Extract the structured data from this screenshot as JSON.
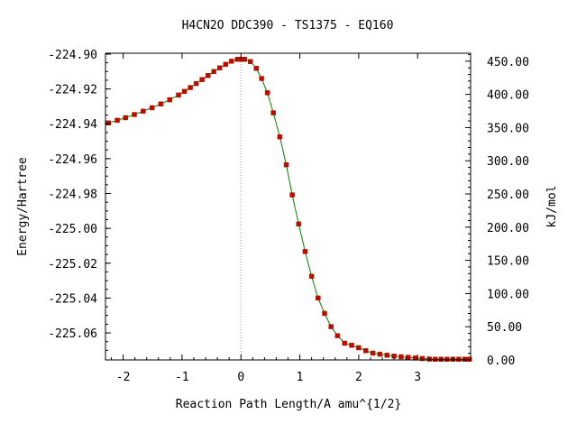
{
  "chart_data": {
    "type": "line",
    "title": "H4CN2O   DDC390 - TS1375 - EQ160",
    "xlabel": "Reaction Path Length/A amu^{1/2}",
    "ylabel": "Energy/Hartree",
    "y2label": "kJ/mol",
    "xlim": [
      -2.3,
      3.9
    ],
    "ylim": [
      -225.0755,
      -224.8995
    ],
    "y2lim": [
      0.0,
      462.0
    ],
    "x_ticks": [
      {
        "value": -2,
        "label": "-2"
      },
      {
        "value": -1,
        "label": "-1"
      },
      {
        "value": 0,
        "label": "0"
      },
      {
        "value": 1,
        "label": "1"
      },
      {
        "value": 2,
        "label": "2"
      },
      {
        "value": 3,
        "label": "3"
      }
    ],
    "y_ticks": [
      {
        "value": -224.9,
        "label": "-224.90"
      },
      {
        "value": -224.92,
        "label": "-224.92"
      },
      {
        "value": -224.94,
        "label": "-224.94"
      },
      {
        "value": -224.96,
        "label": "-224.96"
      },
      {
        "value": -224.98,
        "label": "-224.98"
      },
      {
        "value": -225.0,
        "label": "-225.00"
      },
      {
        "value": -225.02,
        "label": "-225.02"
      },
      {
        "value": -225.04,
        "label": "-225.04"
      },
      {
        "value": -225.06,
        "label": "-225.06"
      }
    ],
    "y2_ticks": [
      {
        "value": 450,
        "label": "450.00"
      },
      {
        "value": 400,
        "label": "400.00"
      },
      {
        "value": 350,
        "label": "350.00"
      },
      {
        "value": 300,
        "label": "300.00"
      },
      {
        "value": 250,
        "label": "250.00"
      },
      {
        "value": 200,
        "label": "200.00"
      },
      {
        "value": 150,
        "label": "150.00"
      },
      {
        "value": 100,
        "label": "100.00"
      },
      {
        "value": 50,
        "label": "50.00"
      },
      {
        "value": 0,
        "label": "0.00"
      }
    ],
    "ts_marker_x": 0,
    "grid": false,
    "series": [
      {
        "x": [
          -2.25,
          -2.1,
          -1.96,
          -1.81,
          -1.66,
          -1.51,
          -1.36,
          -1.21,
          -1.06,
          -0.96,
          -0.86,
          -0.76,
          -0.66,
          -0.56,
          -0.46,
          -0.36,
          -0.26,
          -0.16,
          -0.06,
          0.0,
          0.06,
          0.16,
          0.26,
          0.35,
          0.45,
          0.55,
          0.66,
          0.77,
          0.87,
          0.98,
          1.09,
          1.2,
          1.31,
          1.42,
          1.53,
          1.64,
          1.76,
          1.88,
          2.0,
          2.12,
          2.24,
          2.36,
          2.48,
          2.6,
          2.72,
          2.84,
          2.96,
          3.08,
          3.2,
          3.3,
          3.4,
          3.5,
          3.6,
          3.7,
          3.8,
          3.88
        ],
        "y": [
          -224.9395,
          -224.938,
          -224.9365,
          -224.9347,
          -224.9328,
          -224.9308,
          -224.9286,
          -224.9262,
          -224.9235,
          -224.9214,
          -224.9192,
          -224.9169,
          -224.9146,
          -224.9123,
          -224.91,
          -224.9079,
          -224.9059,
          -224.9041,
          -224.903,
          -224.903,
          -224.903,
          -224.9043,
          -224.9082,
          -224.914,
          -224.9222,
          -224.9337,
          -224.9475,
          -224.9635,
          -224.9808,
          -224.9975,
          -225.0133,
          -225.0275,
          -225.04,
          -225.0488,
          -225.0564,
          -225.0616,
          -225.0659,
          -225.0671,
          -225.0685,
          -225.0702,
          -225.0716,
          -225.0722,
          -225.0728,
          -225.0733,
          -225.0737,
          -225.074,
          -225.0744,
          -225.0747,
          -225.075,
          -225.0751,
          -225.0751,
          -225.0751,
          -225.0751,
          -225.0751,
          -225.0751,
          -225.0751
        ]
      }
    ],
    "colors": {
      "line": "#008000",
      "marker": "#cc0000",
      "ts_line": "#9a9a9a",
      "axes": "#000000"
    }
  }
}
